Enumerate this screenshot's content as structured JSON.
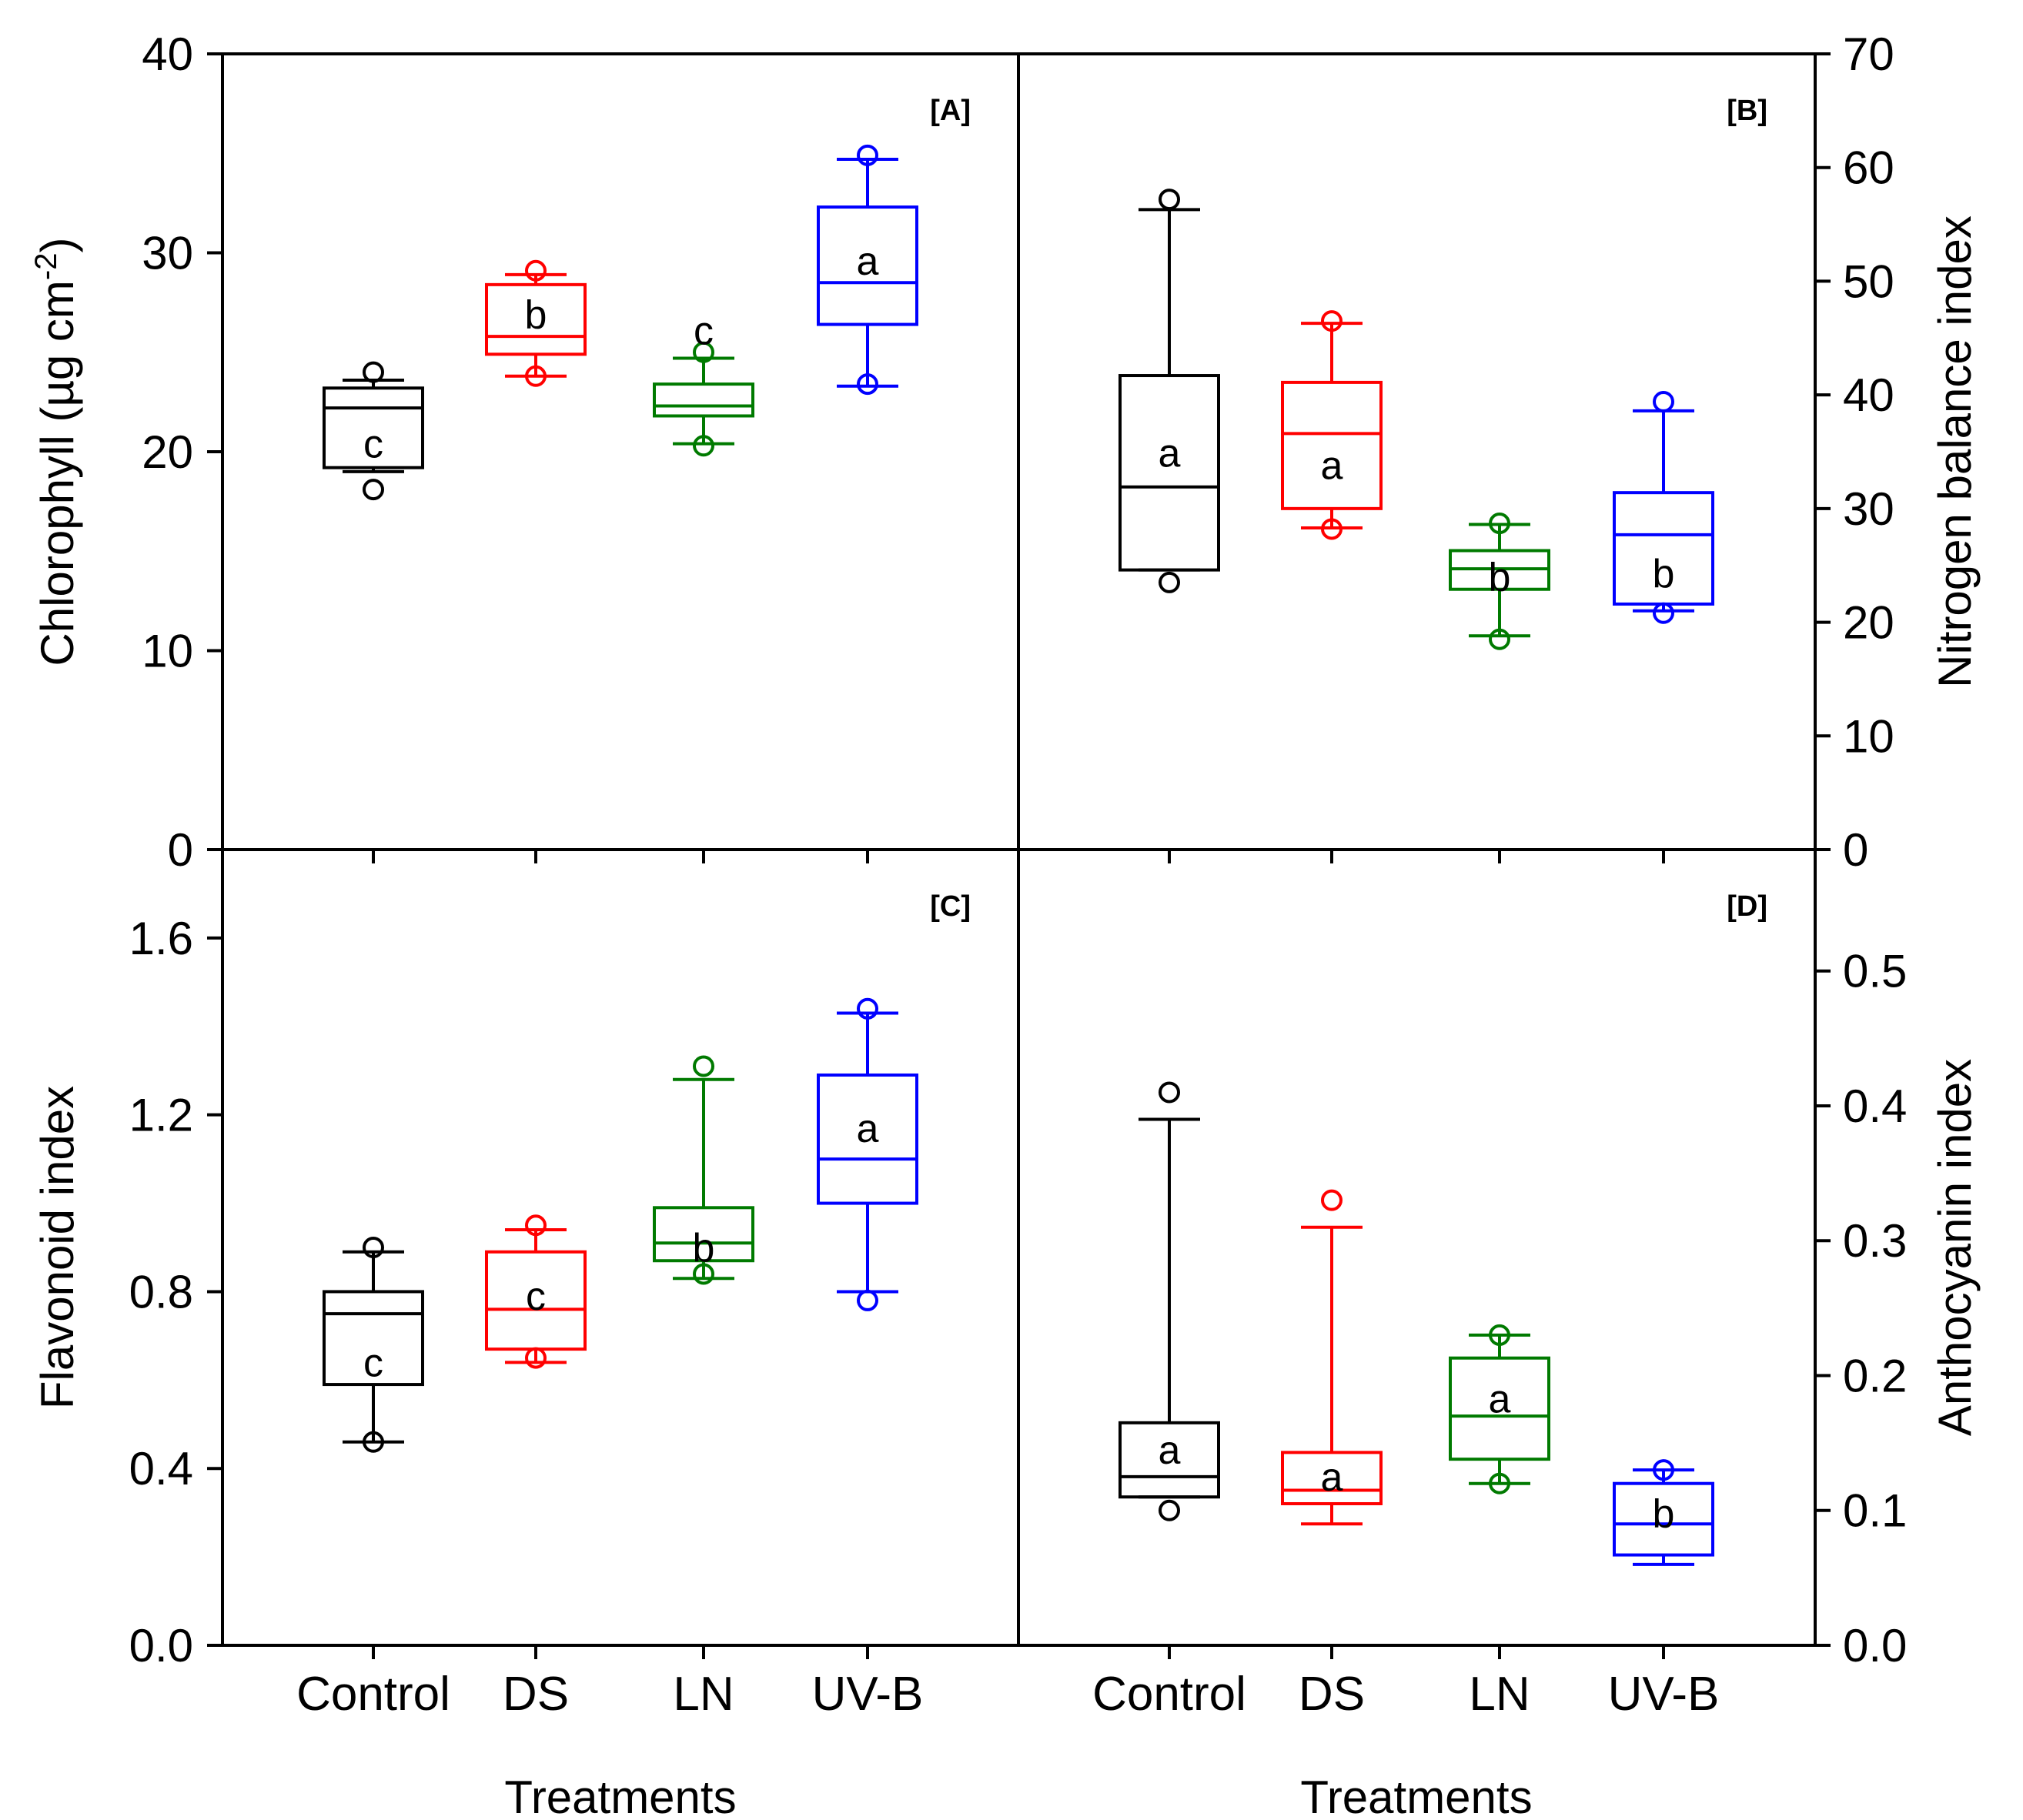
{
  "categories": [
    "Control",
    "DS",
    "LN",
    "UV-B"
  ],
  "colors": {
    "Control": "#000000",
    "DS": "#ff0000",
    "LN": "#007a00",
    "UV-B": "#0000ff"
  },
  "x_axis_title": "Treatments",
  "chart_data": [
    {
      "panel": "[A]",
      "type": "box",
      "ylabel": "Chlorophyll (µg cm",
      "ylabel_sup": "-2",
      "ylabel_close": ")",
      "ylim": [
        0,
        40
      ],
      "yticks": [
        0,
        10,
        20,
        30,
        40
      ],
      "tick_labels": [
        "0",
        "10",
        "20",
        "30",
        "40"
      ],
      "boxes": [
        {
          "category": "Control",
          "whisker_low": 19.0,
          "q1": 19.2,
          "median": 22.2,
          "q3": 23.2,
          "whisker_high": 23.6,
          "outliers": [
            18.1,
            24.0
          ],
          "letter": "c",
          "letter_y": 20.4
        },
        {
          "category": "DS",
          "whisker_low": 23.8,
          "q1": 24.9,
          "median": 25.8,
          "q3": 28.4,
          "whisker_high": 28.9,
          "outliers": [
            23.8,
            29.1
          ],
          "letter": "b",
          "letter_y": 26.9
        },
        {
          "category": "LN",
          "whisker_low": 20.4,
          "q1": 21.8,
          "median": 22.3,
          "q3": 23.4,
          "whisker_high": 24.7,
          "outliers": [
            20.3,
            25.0
          ],
          "letter": "c",
          "letter_y": 26.1
        },
        {
          "category": "UV-B",
          "whisker_low": 23.3,
          "q1": 26.4,
          "median": 28.5,
          "q3": 32.3,
          "whisker_high": 34.7,
          "outliers": [
            23.4,
            34.9
          ],
          "letter": "a",
          "letter_y": 29.6
        }
      ]
    },
    {
      "panel": "[B]",
      "type": "box",
      "ylabel": "Nitrogen balance index",
      "ylim": [
        0,
        70
      ],
      "yticks": [
        0,
        10,
        20,
        30,
        40,
        50,
        60,
        70
      ],
      "tick_labels": [
        "0",
        "10",
        "20",
        "30",
        "40",
        "50",
        "60",
        "70"
      ],
      "boxes": [
        {
          "category": "Control",
          "whisker_low": 24.6,
          "q1": 24.6,
          "median": 31.9,
          "q3": 41.7,
          "whisker_high": 56.3,
          "outliers": [
            23.5,
            57.2
          ],
          "letter": "a",
          "letter_y": 34.9
        },
        {
          "category": "DS",
          "whisker_low": 28.3,
          "q1": 30.0,
          "median": 36.6,
          "q3": 41.1,
          "whisker_high": 46.3,
          "outliers": [
            28.2,
            46.5
          ],
          "letter": "a",
          "letter_y": 33.8
        },
        {
          "category": "LN",
          "whisker_low": 18.8,
          "q1": 22.9,
          "median": 24.7,
          "q3": 26.3,
          "whisker_high": 28.6,
          "outliers": [
            18.5,
            28.7
          ],
          "letter": "b",
          "letter_y": 24.0
        },
        {
          "category": "UV-B",
          "whisker_low": 21.0,
          "q1": 21.6,
          "median": 27.7,
          "q3": 31.4,
          "whisker_high": 38.6,
          "outliers": [
            20.8,
            39.4
          ],
          "letter": "b",
          "letter_y": 24.3
        }
      ]
    },
    {
      "panel": "[C]",
      "type": "box",
      "ylabel": "Flavonoid index",
      "ylim": [
        0,
        1.8
      ],
      "yticks": [
        0,
        0.4,
        0.8,
        1.2,
        1.6
      ],
      "tick_labels": [
        "0.0",
        "0.4",
        "0.8",
        "1.2",
        "1.6"
      ],
      "boxes": [
        {
          "category": "Control",
          "whisker_low": 0.46,
          "q1": 0.59,
          "median": 0.75,
          "q3": 0.8,
          "whisker_high": 0.89,
          "outliers": [
            0.46,
            0.9
          ],
          "letter": "c",
          "letter_y": 0.64
        },
        {
          "category": "DS",
          "whisker_low": 0.64,
          "q1": 0.67,
          "median": 0.76,
          "q3": 0.89,
          "whisker_high": 0.94,
          "outliers": [
            0.65,
            0.95
          ],
          "letter": "c",
          "letter_y": 0.79
        },
        {
          "category": "LN",
          "whisker_low": 0.83,
          "q1": 0.87,
          "median": 0.91,
          "q3": 0.99,
          "whisker_high": 1.28,
          "outliers": [
            0.84,
            1.31
          ],
          "letter": "b",
          "letter_y": 0.9
        },
        {
          "category": "UV-B",
          "whisker_low": 0.8,
          "q1": 1.0,
          "median": 1.1,
          "q3": 1.29,
          "whisker_high": 1.43,
          "outliers": [
            0.78,
            1.44
          ],
          "letter": "a",
          "letter_y": 1.17
        }
      ]
    },
    {
      "panel": "[D]",
      "type": "box",
      "ylabel": "Anthocyanin index",
      "ylim": [
        0,
        0.59
      ],
      "yticks": [
        0,
        0.1,
        0.2,
        0.3,
        0.4,
        0.5
      ],
      "tick_labels": [
        "0.0",
        "0.1",
        "0.2",
        "0.3",
        "0.4",
        "0.5"
      ],
      "boxes": [
        {
          "category": "Control",
          "whisker_low": 0.11,
          "q1": 0.11,
          "median": 0.125,
          "q3": 0.165,
          "whisker_high": 0.39,
          "outliers": [
            0.1,
            0.41
          ],
          "letter": "a",
          "letter_y": 0.145
        },
        {
          "category": "DS",
          "whisker_low": 0.09,
          "q1": 0.105,
          "median": 0.115,
          "q3": 0.143,
          "whisker_high": 0.31,
          "outliers": [
            0.33
          ],
          "letter": "a",
          "letter_y": 0.125
        },
        {
          "category": "LN",
          "whisker_low": 0.12,
          "q1": 0.138,
          "median": 0.17,
          "q3": 0.213,
          "whisker_high": 0.23,
          "outliers": [
            0.12,
            0.23
          ],
          "letter": "a",
          "letter_y": 0.183
        },
        {
          "category": "UV-B",
          "whisker_low": 0.06,
          "q1": 0.067,
          "median": 0.09,
          "q3": 0.12,
          "whisker_high": 0.13,
          "outliers": [
            0.13
          ],
          "letter": "b",
          "letter_y": 0.098
        }
      ]
    }
  ]
}
